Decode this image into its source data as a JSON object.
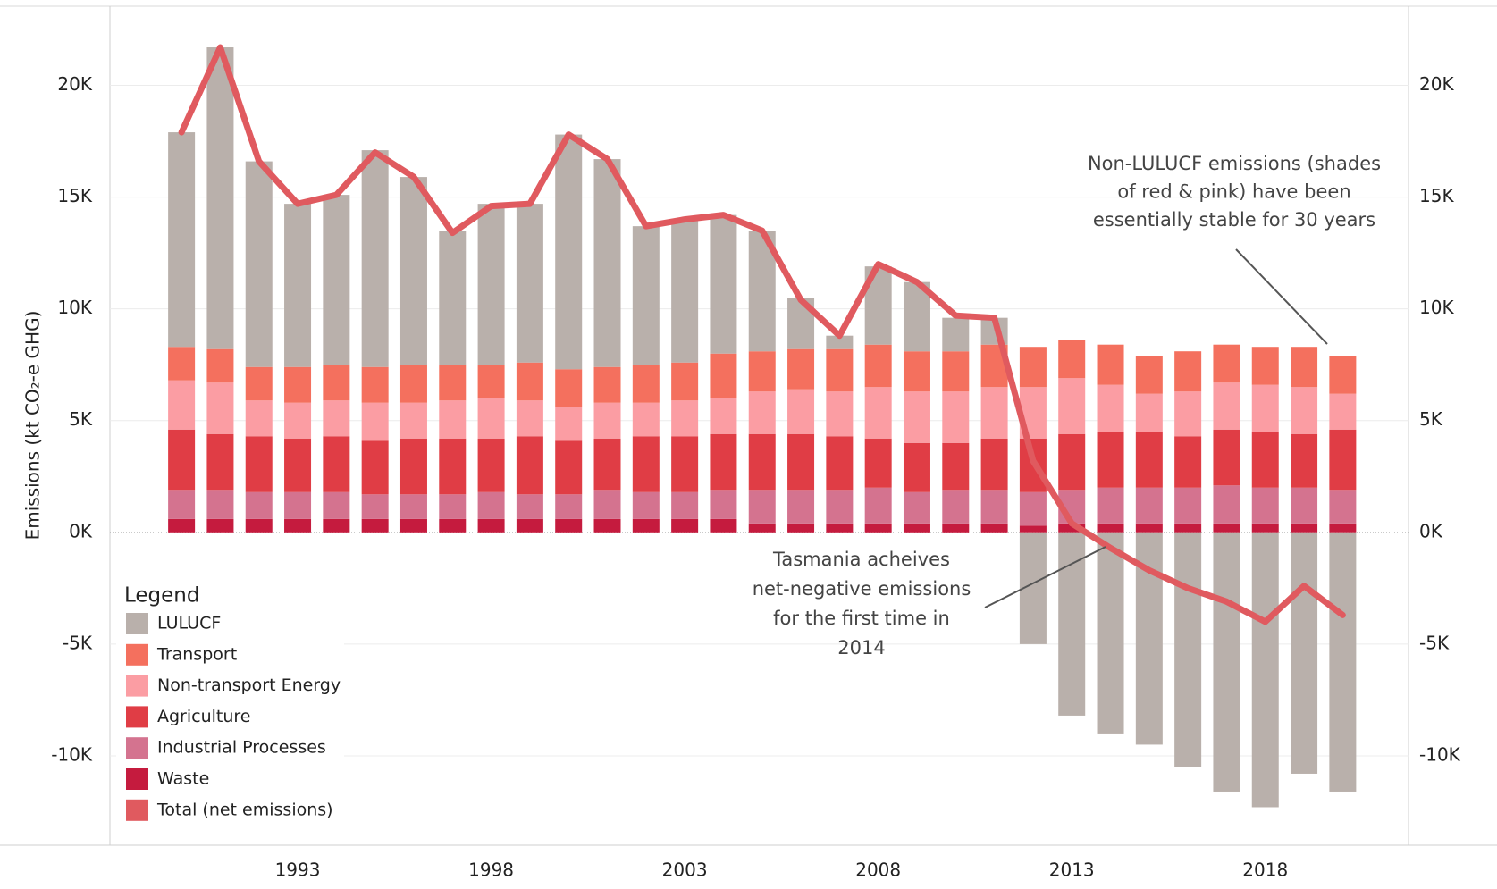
{
  "chart_data": {
    "type": "bar",
    "y_label": "Emissions (kt CO₂-e GHG)",
    "legend_title": "Legend",
    "legend_position": "lower left",
    "grid": true,
    "stacked": true,
    "x": [
      1990,
      1991,
      1992,
      1993,
      1994,
      1995,
      1996,
      1997,
      1998,
      1999,
      2000,
      2001,
      2002,
      2003,
      2004,
      2005,
      2006,
      2007,
      2008,
      2009,
      2010,
      2011,
      2012,
      2013,
      2014,
      2015,
      2016,
      2017,
      2018,
      2019,
      2020
    ],
    "xlim": [
      1988.15,
      2021.7
    ],
    "xticks": [
      1993,
      1998,
      2003,
      2008,
      2013,
      2018
    ],
    "ylim": [
      -14000,
      23500
    ],
    "yticks": [
      {
        "value": -10000,
        "label": "-10K"
      },
      {
        "value": -5000,
        "label": "-5K"
      },
      {
        "value": 0,
        "label": "0K"
      },
      {
        "value": 5000,
        "label": "5K"
      },
      {
        "value": 10000,
        "label": "10K"
      },
      {
        "value": 15000,
        "label": "15K"
      },
      {
        "value": 20000,
        "label": "20K"
      }
    ],
    "y2lim": [
      -14000,
      23500
    ],
    "y2ticks": [
      {
        "value": -10000,
        "label": "-10K"
      },
      {
        "value": -5000,
        "label": "-5K"
      },
      {
        "value": 0,
        "label": "0K"
      },
      {
        "value": 5000,
        "label": "5K"
      },
      {
        "value": 10000,
        "label": "10K"
      },
      {
        "value": 15000,
        "label": "15K"
      },
      {
        "value": 20000,
        "label": "20K"
      }
    ],
    "series": [
      {
        "name": "LULUCF",
        "color": "#b9b0ab",
        "values": [
          9600,
          13500,
          9200,
          7300,
          7600,
          9700,
          8400,
          6000,
          7200,
          7100,
          10500,
          9300,
          6200,
          6400,
          6200,
          5400,
          2300,
          600,
          3500,
          3100,
          1500,
          1200,
          -5000,
          -8200,
          -9000,
          -9500,
          -10500,
          -11600,
          -12300,
          -10800,
          -11600
        ]
      },
      {
        "name": "Transport",
        "color": "#f4705e",
        "values": [
          1500,
          1500,
          1500,
          1600,
          1600,
          1600,
          1700,
          1600,
          1500,
          1700,
          1700,
          1600,
          1700,
          1700,
          2000,
          1800,
          1800,
          1900,
          1900,
          1800,
          1800,
          1900,
          1800,
          1700,
          1800,
          1700,
          1800,
          1700,
          1700,
          1800,
          1700
        ]
      },
      {
        "name": "Non-transport Energy",
        "color": "#fb9da3",
        "values": [
          2200,
          2300,
          1600,
          1600,
          1600,
          1700,
          1600,
          1700,
          1800,
          1600,
          1500,
          1600,
          1500,
          1600,
          1600,
          1900,
          2000,
          2000,
          2300,
          2300,
          2300,
          2300,
          2300,
          2500,
          2100,
          1700,
          2000,
          2100,
          2100,
          2100,
          1600
        ]
      },
      {
        "name": "Agriculture",
        "color": "#e03d45",
        "values": [
          2700,
          2500,
          2500,
          2400,
          2500,
          2400,
          2500,
          2500,
          2400,
          2600,
          2400,
          2300,
          2500,
          2500,
          2500,
          2500,
          2500,
          2400,
          2200,
          2200,
          2100,
          2300,
          2400,
          2500,
          2500,
          2500,
          2300,
          2500,
          2500,
          2400,
          2700
        ]
      },
      {
        "name": "Industrial Processes",
        "color": "#d4738f",
        "values": [
          1300,
          1300,
          1200,
          1200,
          1200,
          1100,
          1100,
          1100,
          1200,
          1100,
          1100,
          1300,
          1200,
          1200,
          1300,
          1500,
          1500,
          1500,
          1600,
          1400,
          1500,
          1500,
          1500,
          1500,
          1600,
          1600,
          1600,
          1700,
          1600,
          1600,
          1500
        ]
      },
      {
        "name": "Waste",
        "color": "#c51b3e",
        "values": [
          600,
          600,
          600,
          600,
          600,
          600,
          600,
          600,
          600,
          600,
          600,
          600,
          600,
          600,
          600,
          400,
          400,
          400,
          400,
          400,
          400,
          400,
          300,
          400,
          400,
          400,
          400,
          400,
          400,
          400,
          400
        ]
      },
      {
        "name": "Total (net emissions)",
        "type": "line",
        "color": "#e05a5f",
        "values": [
          17900,
          21700,
          16600,
          14700,
          15100,
          17000,
          15900,
          13400,
          14600,
          14700,
          17800,
          16700,
          13700,
          14000,
          14200,
          13500,
          10400,
          8800,
          12000,
          11200,
          9700,
          9600,
          3200,
          400,
          -700,
          -1700,
          -2500,
          -3100,
          -4000,
          -2400,
          -3700
        ]
      }
    ],
    "annotations": [
      {
        "lines": [
          "Non-LULUCF emissions (shades",
          "of red & pink) have been",
          "essentially stable for 30 years"
        ]
      },
      {
        "lines": [
          "Tasmania acheives",
          "net-negative emissions",
          "for the first time in",
          "2014"
        ]
      }
    ]
  }
}
